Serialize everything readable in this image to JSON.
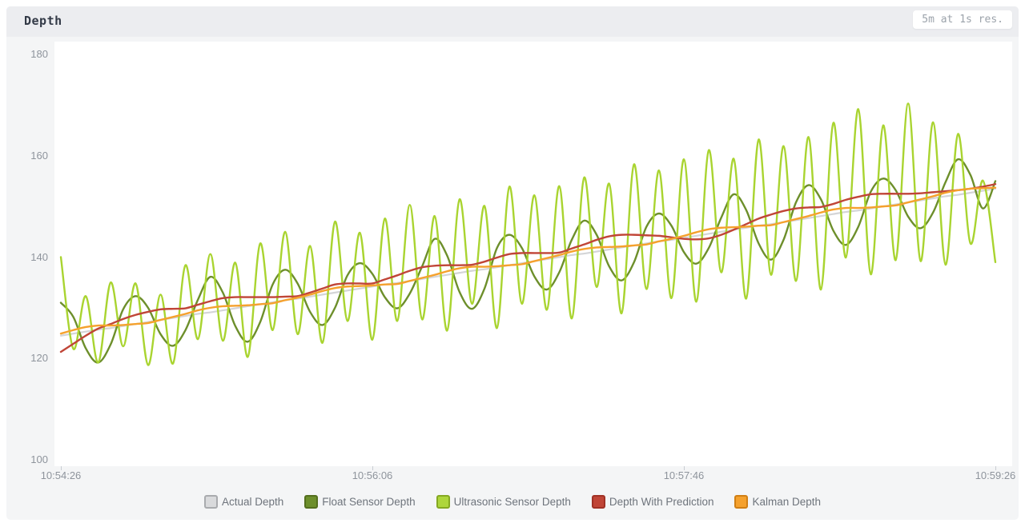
{
  "header": {
    "title": "Depth",
    "badge": "5m at 1s res."
  },
  "colors": {
    "panel_bg": "#f4f5f6",
    "header_bg": "#ecedf0",
    "plot_bg": "#ffffff",
    "title_text": "#333a47",
    "badge_text": "#9ca3ab",
    "tick_text": "#8e949c",
    "legend_text": "#6e747c"
  },
  "chart_data": {
    "type": "line",
    "title": "Depth",
    "xlabel": "",
    "ylabel": "",
    "ylim": [
      100,
      180
    ],
    "y_ticks": [
      100,
      120,
      140,
      160,
      180
    ],
    "x_tick_labels": [
      "10:54:26",
      "10:56:06",
      "10:57:46",
      "10:59:26"
    ],
    "x_tick_seconds": [
      0,
      100,
      200,
      300
    ],
    "x_span_seconds": 300,
    "sample_step_seconds": 4,
    "grid": false,
    "legend_position": "bottom",
    "series": [
      {
        "name": "Actual Depth",
        "color": "#d4d5d7",
        "swatch_fill": "#d9dadc",
        "swatch_border": "#a9abae",
        "line_width": 2.2,
        "values": [
          124.5,
          124.9,
          125.3,
          125.7,
          126.0,
          126.4,
          126.8,
          127.2,
          127.6,
          128.0,
          128.4,
          128.8,
          129.1,
          129.5,
          129.9,
          130.3,
          130.7,
          131.1,
          131.5,
          131.8,
          132.2,
          132.6,
          133.0,
          133.4,
          133.8,
          134.2,
          134.6,
          134.9,
          135.3,
          135.7,
          136.1,
          136.5,
          136.9,
          137.3,
          137.6,
          138.0,
          138.4,
          138.8,
          139.2,
          139.6,
          140.0,
          140.4,
          140.7,
          141.1,
          141.5,
          141.9,
          142.3,
          142.7,
          143.1,
          143.4,
          143.8,
          144.2,
          144.6,
          145.0,
          145.4,
          145.8,
          146.2,
          146.5,
          146.9,
          147.3,
          147.7,
          148.1,
          148.5,
          148.9,
          149.2,
          149.6,
          150.0,
          150.4,
          150.8,
          151.2,
          151.6,
          152.0,
          152.3,
          152.7,
          153.1,
          153.5
        ]
      },
      {
        "name": "Float Sensor Depth",
        "color": "#6d8f2b",
        "swatch_fill": "#6d8f2b",
        "swatch_border": "#546f1e",
        "line_width": 2.4,
        "values": [
          131.0,
          128.2,
          122.0,
          119.2,
          122.8,
          129.7,
          132.3,
          130.0,
          124.8,
          122.5,
          125.6,
          131.6,
          136.1,
          133.0,
          126.4,
          123.3,
          127.2,
          134.6,
          137.5,
          134.8,
          129.2,
          126.6,
          130.0,
          136.4,
          138.8,
          136.7,
          132.1,
          129.9,
          132.8,
          138.2,
          143.6,
          140.3,
          133.1,
          129.8,
          133.8,
          141.8,
          144.4,
          141.8,
          136.2,
          133.6,
          137.0,
          143.4,
          147.2,
          144.4,
          138.2,
          135.4,
          139.0,
          146.0,
          148.6,
          146.2,
          141.0,
          138.7,
          141.8,
          147.8,
          152.4,
          149.3,
          142.7,
          139.5,
          143.4,
          150.8,
          154.2,
          151.4,
          145.2,
          142.4,
          146.0,
          152.9,
          155.5,
          153.2,
          148.0,
          145.7,
          148.8,
          154.8,
          159.3,
          156.2,
          149.6,
          155.0
        ]
      },
      {
        "name": "Ultrasonic Sensor Depth",
        "color": "#a9d430",
        "swatch_fill": "#aed63c",
        "swatch_border": "#85a822",
        "line_width": 2.4,
        "values": [
          140.0,
          121.9,
          132.3,
          119.2,
          135.0,
          122.4,
          134.8,
          118.7,
          132.6,
          119.0,
          138.4,
          123.8,
          140.6,
          123.5,
          138.9,
          120.3,
          142.7,
          125.6,
          145.0,
          124.8,
          142.2,
          123.1,
          147.0,
          127.4,
          144.8,
          123.7,
          147.6,
          127.4,
          150.3,
          127.7,
          148.1,
          125.5,
          151.4,
          130.8,
          150.1,
          126.0,
          153.9,
          130.8,
          152.2,
          129.6,
          154.0,
          127.9,
          155.7,
          134.1,
          154.5,
          128.9,
          158.3,
          133.7,
          157.1,
          131.9,
          159.3,
          131.2,
          161.1,
          137.0,
          159.4,
          131.8,
          163.2,
          136.5,
          161.9,
          135.3,
          163.7,
          133.6,
          166.5,
          139.9,
          169.2,
          136.6,
          166.0,
          139.4,
          170.3,
          139.2,
          166.6,
          138.5,
          164.3,
          142.7,
          155.1,
          139.0
        ]
      },
      {
        "name": "Depth With Prediction",
        "color": "#c04537",
        "swatch_fill": "#c04537",
        "swatch_border": "#a03226",
        "line_width": 2.4,
        "values": [
          121.3,
          122.9,
          124.5,
          125.9,
          126.8,
          127.8,
          128.6,
          129.2,
          129.7,
          129.8,
          129.9,
          130.6,
          131.3,
          131.9,
          132.1,
          132.1,
          132.1,
          132.1,
          132.2,
          132.3,
          133.0,
          133.8,
          134.6,
          134.8,
          134.8,
          134.8,
          135.6,
          136.4,
          137.3,
          138.0,
          138.3,
          138.4,
          138.4,
          138.5,
          139.1,
          139.9,
          140.6,
          140.8,
          140.8,
          140.8,
          140.9,
          141.7,
          142.5,
          143.4,
          144.1,
          144.4,
          144.4,
          144.3,
          144.2,
          143.9,
          143.6,
          143.5,
          143.7,
          144.4,
          145.4,
          146.5,
          147.6,
          148.4,
          149.1,
          149.6,
          149.8,
          149.9,
          150.5,
          151.3,
          151.9,
          152.4,
          152.5,
          152.5,
          152.5,
          152.6,
          152.8,
          153.0,
          153.2,
          153.5,
          153.9,
          154.4
        ]
      },
      {
        "name": "Kalman Depth",
        "color": "#f5a12d",
        "swatch_fill": "#f5a12d",
        "swatch_border": "#d07f15",
        "line_width": 2.4,
        "values": [
          124.9,
          125.6,
          126.2,
          126.5,
          126.5,
          126.6,
          126.8,
          127.0,
          127.6,
          128.2,
          128.8,
          129.5,
          130.0,
          130.3,
          130.4,
          130.5,
          130.7,
          130.9,
          131.5,
          132.0,
          132.6,
          133.3,
          133.9,
          134.2,
          134.3,
          134.4,
          134.6,
          134.7,
          135.3,
          135.9,
          136.5,
          137.2,
          137.8,
          138.1,
          138.1,
          138.2,
          138.4,
          138.6,
          139.2,
          139.8,
          140.4,
          141.1,
          141.6,
          141.9,
          142.0,
          142.1,
          142.3,
          142.5,
          143.1,
          143.6,
          144.2,
          144.9,
          145.5,
          145.8,
          145.9,
          146.0,
          146.2,
          146.3,
          146.9,
          147.5,
          148.1,
          148.8,
          149.4,
          149.7,
          149.7,
          149.8,
          150.0,
          150.2,
          150.8,
          151.4,
          152.0,
          152.7,
          153.2,
          153.5,
          153.6,
          153.7
        ]
      }
    ]
  }
}
